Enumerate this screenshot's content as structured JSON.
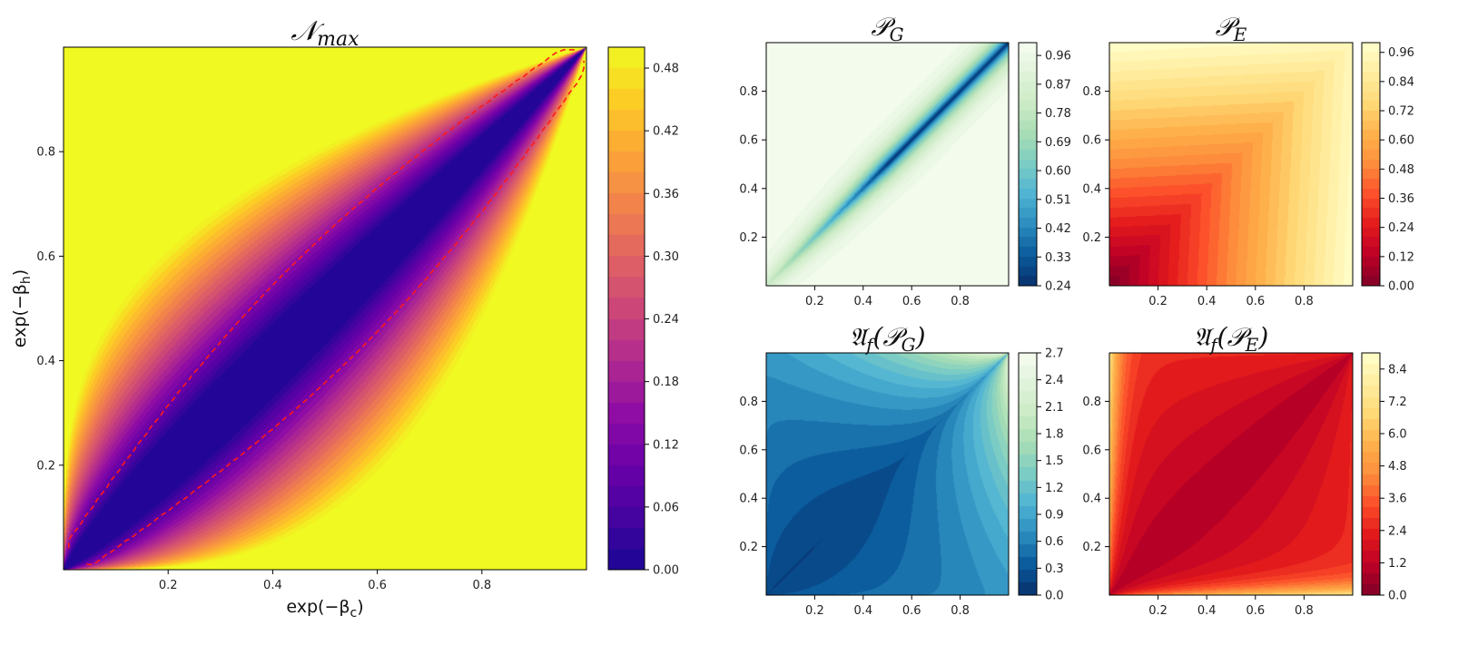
{
  "chart_data": [
    {
      "id": "nmax",
      "type": "heatmap",
      "style": "filled-contour",
      "title": "𝒩max",
      "title_main": "𝒩",
      "title_sub": "max",
      "xlabel": "exp(−βc)",
      "xlabel_main": "exp(−β",
      "xlabel_sub": "c",
      "xlabel_end": ")",
      "ylabel": "exp(−βh)",
      "ylabel_main": "exp(−β",
      "ylabel_sub": "h",
      "ylabel_end": ")",
      "xlim": [
        0,
        1
      ],
      "ylim": [
        0,
        1
      ],
      "x_ticks": [
        0.2,
        0.4,
        0.6,
        0.8
      ],
      "x_tick_labels": [
        "0.2",
        "0.4",
        "0.6",
        "0.8"
      ],
      "y_ticks": [
        0.2,
        0.4,
        0.6,
        0.8
      ],
      "y_tick_labels": [
        "0.2",
        "0.4",
        "0.6",
        "0.8"
      ],
      "colormap": "plasma",
      "colors": [
        "#1a0796",
        "#45039f",
        "#6a00a8",
        "#8f0da4",
        "#b12a90",
        "#cc4778",
        "#e16462",
        "#f2844b",
        "#fca636",
        "#fcce25",
        "#f0f921"
      ],
      "value_range": [
        0,
        0.5
      ],
      "levels": 25,
      "colorbar_ticks": [
        0.0,
        0.06,
        0.12,
        0.18,
        0.24,
        0.3,
        0.36,
        0.42,
        0.48
      ],
      "colorbar_tick_labels": [
        "0.00",
        "0.06",
        "0.12",
        "0.18",
        "0.24",
        "0.30",
        "0.36",
        "0.42",
        "0.48"
      ],
      "overlay": {
        "type": "dashed-contour",
        "color": "#ff1a1a",
        "description": "boundary of zero region"
      }
    },
    {
      "id": "pg",
      "type": "heatmap",
      "style": "filled-contour",
      "title": "𝒫G",
      "title_main": "𝒫",
      "title_sub": "G",
      "xlim": [
        0,
        1
      ],
      "ylim": [
        0,
        1
      ],
      "x_ticks": [
        0.2,
        0.4,
        0.6,
        0.8
      ],
      "x_tick_labels": [
        "0.2",
        "0.4",
        "0.6",
        "0.8"
      ],
      "y_ticks": [
        0.2,
        0.4,
        0.6,
        0.8
      ],
      "y_tick_labels": [
        "0.2",
        "0.4",
        "0.6",
        "0.8"
      ],
      "colormap": "GnBu_r",
      "colors": [
        "#08306b",
        "#0a5a9c",
        "#2b8cbe",
        "#4eb3d3",
        "#7bccc4",
        "#a8ddb5",
        "#ccebc5",
        "#e0f3db",
        "#f7fcf0"
      ],
      "value_range": [
        0.24,
        1.0
      ],
      "levels": 25,
      "colorbar_ticks": [
        0.24,
        0.33,
        0.42,
        0.51,
        0.6,
        0.69,
        0.78,
        0.87,
        0.96
      ],
      "colorbar_tick_labels": [
        "0.24",
        "0.33",
        "0.42",
        "0.51",
        "0.60",
        "0.69",
        "0.78",
        "0.87",
        "0.96"
      ]
    },
    {
      "id": "pe",
      "type": "heatmap",
      "style": "filled-contour",
      "title": "𝒫E",
      "title_main": "𝒫",
      "title_sub": "E",
      "xlim": [
        0,
        1
      ],
      "ylim": [
        0,
        1
      ],
      "x_ticks": [
        0.2,
        0.4,
        0.6,
        0.8
      ],
      "x_tick_labels": [
        "0.2",
        "0.4",
        "0.6",
        "0.8"
      ],
      "y_ticks": [
        0.2,
        0.4,
        0.6,
        0.8
      ],
      "y_tick_labels": [
        "0.2",
        "0.4",
        "0.6",
        "0.8"
      ],
      "colormap": "YlOrRd_r",
      "colors": [
        "#800026",
        "#bd0026",
        "#e31a1c",
        "#fc4e2a",
        "#fd8d3c",
        "#feb24c",
        "#fed976",
        "#ffeda0",
        "#ffffcc"
      ],
      "value_range": [
        0,
        1.0
      ],
      "levels": 25,
      "colorbar_ticks": [
        0.0,
        0.12,
        0.24,
        0.36,
        0.48,
        0.6,
        0.72,
        0.84,
        0.96
      ],
      "colorbar_tick_labels": [
        "0.00",
        "0.12",
        "0.24",
        "0.36",
        "0.48",
        "0.60",
        "0.72",
        "0.84",
        "0.96"
      ]
    },
    {
      "id": "afpg",
      "type": "heatmap",
      "style": "filled-contour",
      "title": "𝔄f(𝒫G)",
      "title_main": "𝔄",
      "title_sub": "f",
      "title_mid": "(𝒫",
      "title_sub2": "G",
      "title_end": ")",
      "xlim": [
        0,
        1
      ],
      "ylim": [
        0,
        1
      ],
      "x_ticks": [
        0.2,
        0.4,
        0.6,
        0.8
      ],
      "x_tick_labels": [
        "0.2",
        "0.4",
        "0.6",
        "0.8"
      ],
      "y_ticks": [
        0.2,
        0.4,
        0.6,
        0.8
      ],
      "y_tick_labels": [
        "0.2",
        "0.4",
        "0.6",
        "0.8"
      ],
      "colormap": "GnBu_r",
      "colors": [
        "#08306b",
        "#0a5a9c",
        "#2b8cbe",
        "#4eb3d3",
        "#7bccc4",
        "#a8ddb5",
        "#ccebc5",
        "#e0f3db",
        "#f7fcf0"
      ],
      "value_range": [
        0,
        2.7
      ],
      "levels": 19,
      "colorbar_ticks": [
        0.0,
        0.3,
        0.6,
        0.9,
        1.2,
        1.5,
        1.8,
        2.1,
        2.4,
        2.7
      ],
      "colorbar_tick_labels": [
        "0.0",
        "0.3",
        "0.6",
        "0.9",
        "1.2",
        "1.5",
        "1.8",
        "2.1",
        "2.4",
        "2.7"
      ]
    },
    {
      "id": "afpe",
      "type": "heatmap",
      "style": "filled-contour",
      "title": "𝔄f(𝒫E)",
      "title_main": "𝔄",
      "title_sub": "f",
      "title_mid": "(𝒫",
      "title_sub2": "E",
      "title_end": ")",
      "xlim": [
        0,
        1
      ],
      "ylim": [
        0,
        1
      ],
      "x_ticks": [
        0.2,
        0.4,
        0.6,
        0.8
      ],
      "x_tick_labels": [
        "0.2",
        "0.4",
        "0.6",
        "0.8"
      ],
      "y_ticks": [
        0.2,
        0.4,
        0.6,
        0.8
      ],
      "y_tick_labels": [
        "0.2",
        "0.4",
        "0.6",
        "0.8"
      ],
      "colormap": "YlOrRd_r",
      "colors": [
        "#800026",
        "#bd0026",
        "#e31a1c",
        "#fc4e2a",
        "#fd8d3c",
        "#feb24c",
        "#fed976",
        "#ffeda0",
        "#ffffcc"
      ],
      "value_range": [
        0,
        9.0
      ],
      "levels": 22,
      "colorbar_ticks": [
        0.0,
        1.2,
        2.4,
        3.6,
        4.8,
        6.0,
        7.2,
        8.4
      ],
      "colorbar_tick_labels": [
        "0.0",
        "1.2",
        "2.4",
        "3.6",
        "4.8",
        "6.0",
        "7.2",
        "8.4"
      ]
    }
  ]
}
